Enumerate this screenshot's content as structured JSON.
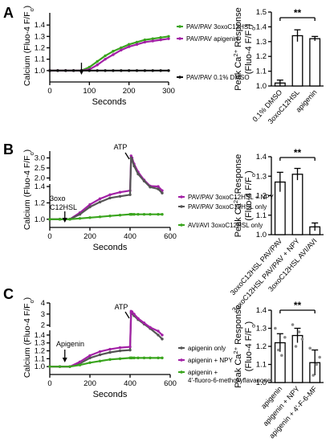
{
  "chart_data": [
    {
      "panel": "A",
      "type": "line",
      "ylabel": "Calcium (Fluo-4 F/F",
      "ylabel_sub": "o",
      "ylabel_close": ")",
      "xlabel": "Seconds",
      "xlim": [
        0,
        300
      ],
      "ylim": [
        0.9,
        1.5
      ],
      "xticks": [
        "0",
        "100",
        "200",
        "300"
      ],
      "yticks": [
        "1.0",
        "1.1",
        "1.2",
        "1.3",
        "1.4"
      ],
      "x": [
        0,
        20,
        40,
        60,
        80,
        100,
        120,
        140,
        160,
        180,
        200,
        220,
        240,
        260,
        280,
        300
      ],
      "series": [
        {
          "name": "PAV/PAV 3oxoC12HSL",
          "color": "#3aa51e",
          "values": [
            1.0,
            1.0,
            1.0,
            1.0,
            1.0,
            1.03,
            1.08,
            1.13,
            1.17,
            1.2,
            1.23,
            1.25,
            1.27,
            1.28,
            1.29,
            1.3
          ]
        },
        {
          "name": "PAV/PAV apigenin",
          "color": "#a321a6",
          "values": [
            1.0,
            1.0,
            1.0,
            1.0,
            1.0,
            1.01,
            1.05,
            1.1,
            1.14,
            1.18,
            1.21,
            1.23,
            1.25,
            1.26,
            1.27,
            1.28
          ]
        },
        {
          "name": "PAV/PAV 0.1% DMSO",
          "color": "#111111",
          "values": [
            1.0,
            1.0,
            1.0,
            1.0,
            1.0,
            1.0,
            1.0,
            1.0,
            1.0,
            1.0,
            1.0,
            1.0,
            1.0,
            1.0,
            1.0,
            1.0
          ]
        }
      ]
    },
    {
      "panel": "A",
      "type": "bar",
      "ylabel": "Peak Ca",
      "ylabel_sup": "2+",
      "ylabel_rest": " Response",
      "ylabel2": "(Fluo-4 F/F",
      "ylabel2_sub": "o",
      "ylabel2_close": ")",
      "ylim": [
        1.0,
        1.5
      ],
      "yticks": [
        "1.0",
        "1.1",
        "1.2",
        "1.3",
        "1.4",
        "1.5"
      ],
      "categories": [
        "0.1% DMSO",
        "3oxoC12HSL",
        "apigenin"
      ],
      "values": [
        1.02,
        1.34,
        1.32
      ],
      "errors": [
        0.02,
        0.04,
        0.015
      ],
      "significance": "**"
    },
    {
      "panel": "B",
      "type": "line",
      "ylabel": "Calcium (Fluo-4 F/F",
      "ylabel_sub": "o",
      "ylabel_close": ")",
      "xlabel": "Seconds",
      "xlim": [
        0,
        600
      ],
      "ylim": [
        0.9,
        3.3
      ],
      "xticks": [
        "0",
        "200",
        "400",
        "600"
      ],
      "yticks": [
        "1.0",
        "1.2",
        "1.4",
        "2.0",
        "2.5",
        "3.0"
      ],
      "annotations": [
        "3oxo",
        "C12HSL",
        "ATP"
      ],
      "x": [
        0,
        50,
        100,
        150,
        200,
        250,
        300,
        350,
        400,
        405,
        410,
        420,
        440,
        470,
        500,
        540,
        560
      ],
      "series": [
        {
          "name": "PAV/PAV 3oxoC12HSL + NPY",
          "color": "#a321a6",
          "values": [
            1.0,
            1.0,
            1.0,
            1.08,
            1.18,
            1.25,
            1.3,
            1.33,
            1.35,
            3.1,
            3.0,
            2.7,
            2.3,
            1.9,
            1.6,
            1.4,
            1.35
          ]
        },
        {
          "name": "PAV/PAV 3oxoC12HSL only",
          "color": "#555555",
          "values": [
            1.0,
            1.0,
            1.0,
            1.06,
            1.15,
            1.21,
            1.26,
            1.28,
            1.3,
            3.0,
            2.9,
            2.6,
            2.2,
            1.85,
            1.55,
            1.37,
            1.32
          ]
        },
        {
          "name": "AVI/AVI 3oxoC12HSL only",
          "color": "#3aa51e",
          "values": [
            1.0,
            1.0,
            1.0,
            1.01,
            1.02,
            1.03,
            1.04,
            1.05,
            1.06,
            1.06,
            1.06,
            1.06,
            1.06,
            1.06,
            1.06,
            1.06,
            1.06
          ]
        }
      ]
    },
    {
      "panel": "B",
      "type": "bar",
      "ylabel": "Peak Ca",
      "ylabel_sup": "2+",
      "ylabel_rest": " Response",
      "ylabel2": "(Fluo-4 F/F",
      "ylabel2_sub": "o",
      "ylabel2_close": ")",
      "ylim": [
        1.0,
        1.4
      ],
      "yticks": [
        "1.0",
        "1.1",
        "1.2",
        "1.3",
        "1.4"
      ],
      "categories": [
        "3oxoC12HSL PAV/PAV",
        "3oxoC12HSL PAV/PAV + NPY",
        "3oxoC12HSL AVI/AVI"
      ],
      "values": [
        1.27,
        1.31,
        1.04
      ],
      "errors": [
        0.05,
        0.03,
        0.02
      ],
      "significance": "**"
    },
    {
      "panel": "C",
      "type": "line",
      "ylabel": "Calcium (Fluo-4 F/F",
      "ylabel_sub": "o",
      "ylabel_close": ")",
      "xlabel": "Seconds",
      "xlim": [
        0,
        600
      ],
      "ylim": [
        0.9,
        4.0
      ],
      "xticks": [
        "0",
        "200",
        "400",
        "600"
      ],
      "yticks": [
        "1.0",
        "1.1",
        "1.2",
        "1.3",
        "1.4",
        "2",
        "3",
        "4"
      ],
      "annotations": [
        "Apigenin",
        "ATP"
      ],
      "x": [
        0,
        50,
        100,
        150,
        200,
        250,
        300,
        350,
        400,
        405,
        410,
        420,
        440,
        470,
        500,
        540,
        560
      ],
      "series": [
        {
          "name": "apigenin only",
          "color": "#555555",
          "values": [
            1.0,
            1.0,
            1.0,
            1.04,
            1.11,
            1.15,
            1.18,
            1.2,
            1.21,
            3.1,
            3.05,
            2.85,
            2.5,
            2.1,
            1.7,
            1.4,
            1.35
          ]
        },
        {
          "name": "apigenin + NPY",
          "color": "#a321a6",
          "values": [
            1.0,
            1.0,
            1.0,
            1.06,
            1.14,
            1.19,
            1.22,
            1.24,
            1.25,
            3.25,
            3.2,
            3.0,
            2.6,
            2.2,
            1.8,
            1.45,
            1.4
          ]
        },
        {
          "name": "apigenin + 4'-fluoro-6-methoxyflavanone",
          "name_line1": "apigenin +",
          "name_line2": "4'-fluoro-6-methoxyflavanone",
          "color": "#3aa51e",
          "values": [
            1.0,
            1.0,
            1.0,
            1.02,
            1.05,
            1.07,
            1.09,
            1.1,
            1.11,
            1.11,
            1.11,
            1.11,
            1.11,
            1.11,
            1.11,
            1.11,
            1.11
          ]
        }
      ]
    },
    {
      "panel": "C",
      "type": "bar",
      "ylabel": "Peak Ca",
      "ylabel_sup": "2+",
      "ylabel_rest": " Response",
      "ylabel2": "(Fluo-4 F/F",
      "ylabel2_sub": "o",
      "ylabel2_close": ")",
      "ylim": [
        1.0,
        1.4
      ],
      "yticks": [
        "1.0",
        "1.1",
        "1.2",
        "1.3",
        "1.4"
      ],
      "categories": [
        "apigenin",
        "apigenin + NPY",
        "apigenin + 4'-F-6-MF"
      ],
      "values": [
        1.22,
        1.26,
        1.11
      ],
      "errors": [
        0.05,
        0.04,
        0.07
      ],
      "points": [
        [
          1.3,
          1.18,
          1.15,
          1.25
        ],
        [
          1.32,
          1.2,
          1.28,
          1.24
        ],
        [
          1.19,
          1.04,
          1.1,
          1.14
        ]
      ],
      "significance": "**"
    }
  ]
}
